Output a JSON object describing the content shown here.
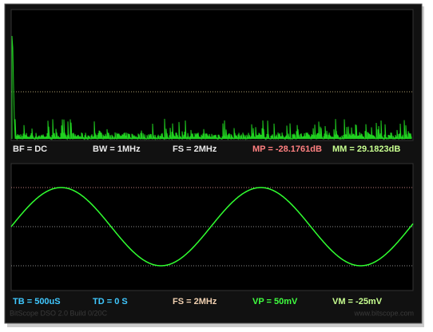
{
  "spectrum_status": {
    "bf": "BF = DC",
    "bw": "BW = 1MHz",
    "fs": "FS = 2MHz",
    "mp": "MP = -28.1761dB",
    "mm": "MM = 29.1823dB"
  },
  "scope_status": {
    "tb": "TB = 500uS",
    "td": "TD = 0 S",
    "fs": "FS = 2MHz",
    "vp": "VP = 50mV",
    "vm": "VM = -25mV"
  },
  "watermark": {
    "build": "BitScope DSO 2.0 Build 0/20C",
    "site": "www.bitscope.com"
  }
}
